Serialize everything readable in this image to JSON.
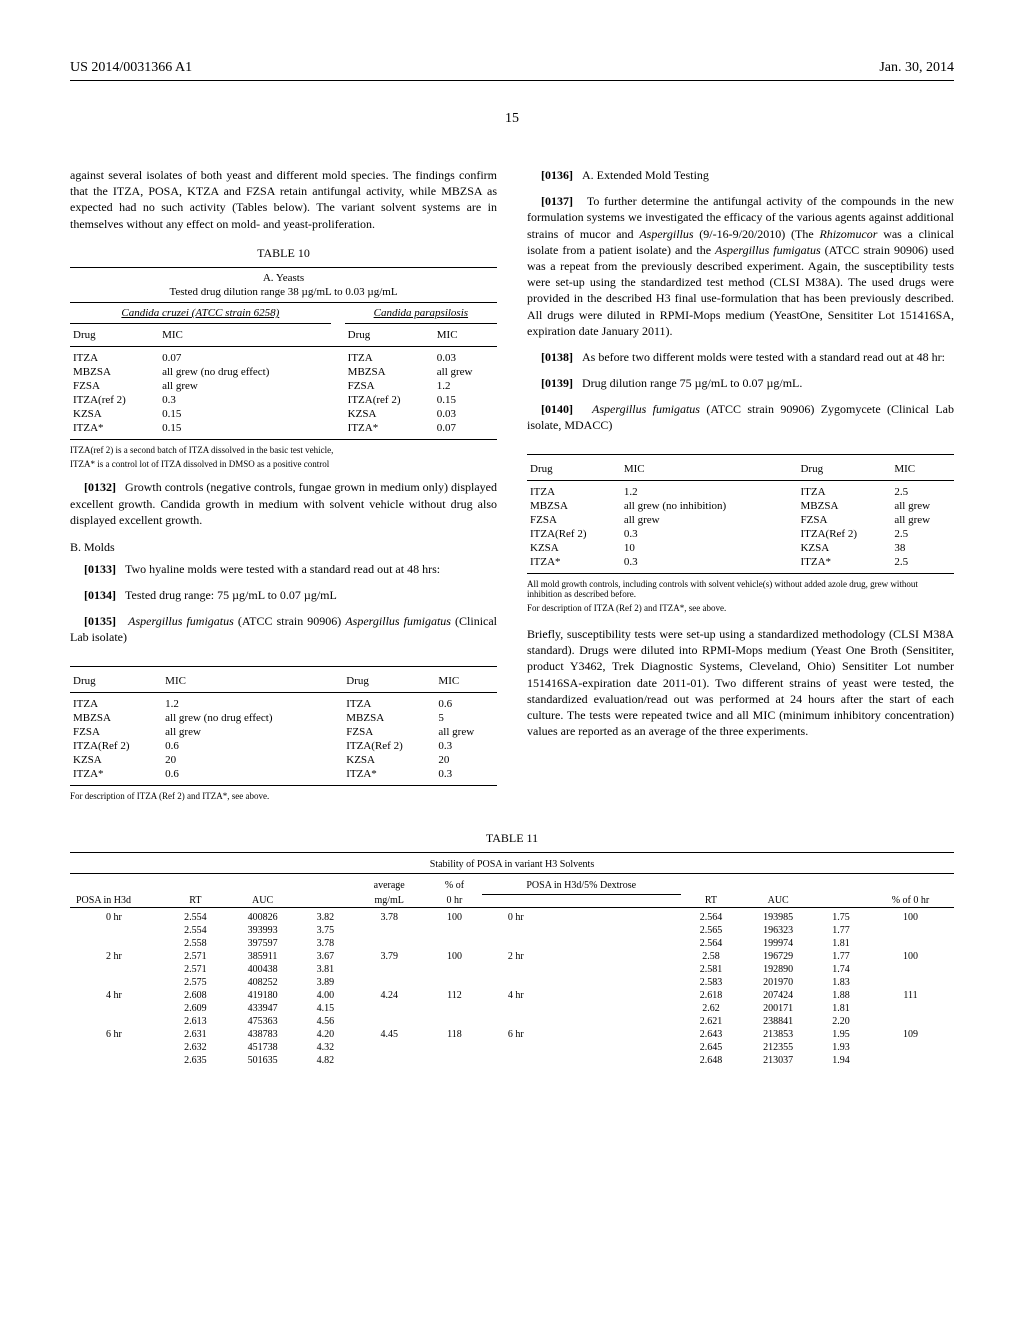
{
  "header": {
    "pub_number": "US 2014/0031366 A1",
    "date": "Jan. 30, 2014"
  },
  "page_number": "15",
  "left": {
    "intro": "against several isolates of both yeast and different mold species. The findings confirm that the ITZA, POSA, KTZA and FZSA retain antifungal activity, while MBZSA as expected had no such activity (Tables below). The variant solvent systems are in themselves without any effect on mold- and yeast-proliferation.",
    "table10": {
      "label": "TABLE 10",
      "subtitle_a": "A. Yeasts",
      "range": "Tested drug dilution range 38 µg/mL to 0.03 µg/mL",
      "cc_label": "Candida cruzei (ATCC strain 6258)",
      "cp_label": "Candida parapsilosis",
      "col_drug": "Drug",
      "col_mic": "MIC",
      "rows_cc": [
        {
          "drug": "ITZA",
          "mic": "0.07"
        },
        {
          "drug": "MBZSA",
          "mic": "all grew (no drug effect)"
        },
        {
          "drug": "FZSA",
          "mic": "all grew"
        },
        {
          "drug": "ITZA(ref 2)",
          "mic": "0.3"
        },
        {
          "drug": "KZSA",
          "mic": "0.15"
        },
        {
          "drug": "ITZA*",
          "mic": "0.15"
        }
      ],
      "rows_cp": [
        {
          "drug": "ITZA",
          "mic": "0.03"
        },
        {
          "drug": "MBZSA",
          "mic": "all grew"
        },
        {
          "drug": "FZSA",
          "mic": "1.2"
        },
        {
          "drug": "ITZA(ref 2)",
          "mic": "0.15"
        },
        {
          "drug": "KZSA",
          "mic": "0.03"
        },
        {
          "drug": "ITZA*",
          "mic": "0.07"
        }
      ],
      "note1": "ITZA(ref 2) is a second batch of ITZA dissolved in the basic test vehicle,",
      "note2": "ITZA* is a control lot of ITZA dissolved in DMSO as a positive control"
    },
    "p0132_num": "[0132]",
    "p0132": "Growth controls (negative controls, fungae grown in medium only) displayed excellent growth. Candida growth in medium with solvent vehicle without drug also displayed excellent growth.",
    "sectionB": "B. Molds",
    "p0133_num": "[0133]",
    "p0133": "Two hyaline molds were tested with a standard read out at 48 hrs:",
    "p0134_num": "[0134]",
    "p0134": "Tested drug range: 75 µg/mL to 0.07 µg/mL",
    "p0135_num": "[0135]",
    "p0135a": "Aspergillus fumigatus",
    "p0135b": " (ATCC strain 90906) ",
    "p0135c": "Aspergillus fumigatus",
    "p0135d": " (Clinical Lab isolate)",
    "moldTable": {
      "col_drug": "Drug",
      "col_mic": "MIC",
      "rows_a": [
        {
          "drug": "ITZA",
          "mic": "1.2"
        },
        {
          "drug": "MBZSA",
          "mic": "all grew (no drug effect)"
        },
        {
          "drug": "FZSA",
          "mic": "all grew"
        },
        {
          "drug": "ITZA(Ref 2)",
          "mic": "0.6"
        },
        {
          "drug": "KZSA",
          "mic": "20"
        },
        {
          "drug": "ITZA*",
          "mic": "0.6"
        }
      ],
      "rows_b": [
        {
          "drug": "ITZA",
          "mic": "0.6"
        },
        {
          "drug": "MBZSA",
          "mic": "5"
        },
        {
          "drug": "FZSA",
          "mic": "all grew"
        },
        {
          "drug": "ITZA(Ref 2)",
          "mic": "0.3"
        },
        {
          "drug": "KZSA",
          "mic": "20"
        },
        {
          "drug": "ITZA*",
          "mic": "0.3"
        }
      ],
      "note": "For description of ITZA (Ref 2) and ITZA*, see above."
    }
  },
  "right": {
    "p0136_num": "[0136]",
    "p0136": "A. Extended Mold Testing",
    "p0137_num": "[0137]",
    "p0137a": "To further determine the antifungal activity of the compounds in the new formulation systems we investigated the efficacy of the various agents against additional strains of mucor and ",
    "p0137b": "Aspergillus",
    "p0137c": " (9/-16-9/20/2010) (The ",
    "p0137d": "Rhizomucor",
    "p0137e": " was a clinical isolate from a patient isolate) and the ",
    "p0137f": "Aspergillus fumigatus",
    "p0137g": " (ATCC strain 90906) used was a repeat from the previously described experiment. Again, the susceptibility tests were set-up using the standardized test method (CLSI M38A). The used drugs were provided in the described H3 final use-formulation that has been previously described. All drugs were diluted in RPMI-Mops medium (YeastOne, Sensititer Lot 151416SA, expiration date January 2011).",
    "p0138_num": "[0138]",
    "p0138": "As before two different molds were tested with a standard read out at 48 hr:",
    "p0139_num": "[0139]",
    "p0139": "Drug dilution range 75 µg/mL to 0.07 µg/mL.",
    "p0140_num": "[0140]",
    "p0140a": "Aspergillus fumigatus",
    "p0140b": " (ATCC strain 90906) Zygomycete (Clinical Lab isolate, MDACC)",
    "moldTable2": {
      "col_drug": "Drug",
      "col_mic": "MIC",
      "rows_a": [
        {
          "drug": "ITZA",
          "mic": "1.2"
        },
        {
          "drug": "MBZSA",
          "mic": "all grew (no inhibition)"
        },
        {
          "drug": "FZSA",
          "mic": "all grew"
        },
        {
          "drug": "ITZA(Ref 2)",
          "mic": "0.3"
        },
        {
          "drug": "KZSA",
          "mic": "10"
        },
        {
          "drug": "ITZA*",
          "mic": "0.3"
        }
      ],
      "rows_b": [
        {
          "drug": "ITZA",
          "mic": "2.5"
        },
        {
          "drug": "MBZSA",
          "mic": "all grew"
        },
        {
          "drug": "FZSA",
          "mic": "all grew"
        },
        {
          "drug": "ITZA(Ref 2)",
          "mic": "2.5"
        },
        {
          "drug": "KZSA",
          "mic": "38"
        },
        {
          "drug": "ITZA*",
          "mic": "2.5"
        }
      ],
      "note1": "All mold growth controls, including controls with solvent vehicle(s) without added azole drug, grew without inhibition as described before.",
      "note2": "For description of ITZA (Ref 2) and ITZA*, see above."
    },
    "briefly": "Briefly, susceptibility tests were set-up using a standardized methodology (CLSI M38A standard). Drugs were diluted into RPMI-Mops medium (Yeast One Broth (Sensititer, product Y3462, Trek Diagnostic Systems, Cleveland, Ohio) Sensititer Lot number 151416SA-expiration date 2011-01). Two different strains of yeast were tested, the standardized evaluation/read out was performed at 24 hours after the start of each culture. The tests were repeated twice and all MIC (minimum inhibitory concentration) values are reported as an average of the three experiments."
  },
  "table11": {
    "label": "TABLE 11",
    "title": "Stability of POSA in variant H3 Solvents",
    "h_posa_h3d": "POSA in H3d",
    "h_rt": "RT",
    "h_auc": "AUC",
    "h_avg": "average",
    "h_mgml": "mg/mL",
    "h_pct_of": "% of",
    "h_0hr": "0 hr",
    "h_posa_h3d5": "POSA in H3d/5% Dextrose",
    "h_pct_0hr": "% of 0 hr",
    "rows": [
      {
        "t": "0 hr",
        "rt": "2.554",
        "auc": "400826",
        "v": "3.82",
        "mg": "3.78",
        "pct": "100",
        "t2": "0 hr",
        "rt2": "2.564",
        "auc2": "193985",
        "v2": "1.75",
        "pct2": "100"
      },
      {
        "t": "",
        "rt": "2.554",
        "auc": "393993",
        "v": "3.75",
        "mg": "",
        "pct": "",
        "t2": "",
        "rt2": "2.565",
        "auc2": "196323",
        "v2": "1.77",
        "pct2": ""
      },
      {
        "t": "",
        "rt": "2.558",
        "auc": "397597",
        "v": "3.78",
        "mg": "",
        "pct": "",
        "t2": "",
        "rt2": "2.564",
        "auc2": "199974",
        "v2": "1.81",
        "pct2": ""
      },
      {
        "t": "2 hr",
        "rt": "2.571",
        "auc": "385911",
        "v": "3.67",
        "mg": "3.79",
        "pct": "100",
        "t2": "2 hr",
        "rt2": "2.58",
        "auc2": "196729",
        "v2": "1.77",
        "pct2": "100"
      },
      {
        "t": "",
        "rt": "2.571",
        "auc": "400438",
        "v": "3.81",
        "mg": "",
        "pct": "",
        "t2": "",
        "rt2": "2.581",
        "auc2": "192890",
        "v2": "1.74",
        "pct2": ""
      },
      {
        "t": "",
        "rt": "2.575",
        "auc": "408252",
        "v": "3.89",
        "mg": "",
        "pct": "",
        "t2": "",
        "rt2": "2.583",
        "auc2": "201970",
        "v2": "1.83",
        "pct2": ""
      },
      {
        "t": "4 hr",
        "rt": "2.608",
        "auc": "419180",
        "v": "4.00",
        "mg": "4.24",
        "pct": "112",
        "t2": "4 hr",
        "rt2": "2.618",
        "auc2": "207424",
        "v2": "1.88",
        "pct2": "111"
      },
      {
        "t": "",
        "rt": "2.609",
        "auc": "433947",
        "v": "4.15",
        "mg": "",
        "pct": "",
        "t2": "",
        "rt2": "2.62",
        "auc2": "200171",
        "v2": "1.81",
        "pct2": ""
      },
      {
        "t": "",
        "rt": "2.613",
        "auc": "475363",
        "v": "4.56",
        "mg": "",
        "pct": "",
        "t2": "",
        "rt2": "2.621",
        "auc2": "238841",
        "v2": "2.20",
        "pct2": ""
      },
      {
        "t": "6 hr",
        "rt": "2.631",
        "auc": "438783",
        "v": "4.20",
        "mg": "4.45",
        "pct": "118",
        "t2": "6 hr",
        "rt2": "2.643",
        "auc2": "213853",
        "v2": "1.95",
        "pct2": "109"
      },
      {
        "t": "",
        "rt": "2.632",
        "auc": "451738",
        "v": "4.32",
        "mg": "",
        "pct": "",
        "t2": "",
        "rt2": "2.645",
        "auc2": "212355",
        "v2": "1.93",
        "pct2": ""
      },
      {
        "t": "",
        "rt": "2.635",
        "auc": "501635",
        "v": "4.82",
        "mg": "",
        "pct": "",
        "t2": "",
        "rt2": "2.648",
        "auc2": "213037",
        "v2": "1.94",
        "pct2": ""
      }
    ]
  }
}
